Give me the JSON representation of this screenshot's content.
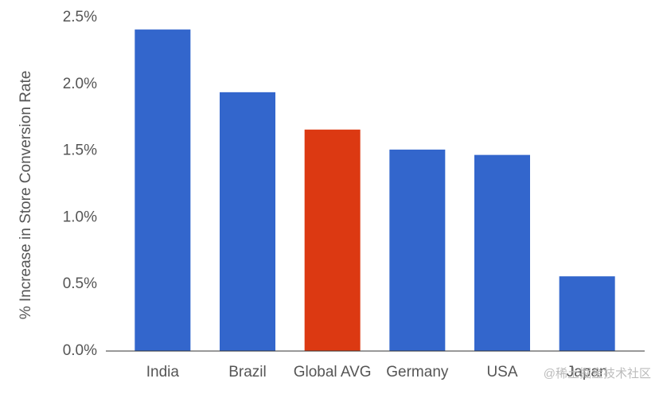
{
  "chart_data": {
    "type": "bar",
    "y_label": "% Increase in Store Conversion Rate",
    "categories": [
      "India",
      "Brazil",
      "Global AVG",
      "Germany",
      "USA",
      "Japan"
    ],
    "values": [
      2.41,
      1.94,
      1.66,
      1.51,
      1.47,
      0.56
    ],
    "colors": [
      "#3366cc",
      "#3366cc",
      "#dc3912",
      "#3366cc",
      "#3366cc",
      "#3366cc"
    ],
    "ylim": [
      0,
      2.5
    ],
    "yticks": [
      {
        "value": 0,
        "label": "0.0%"
      },
      {
        "value": 0.5,
        "label": "0.5%"
      },
      {
        "value": 1,
        "label": "1.0%"
      },
      {
        "value": 1.5,
        "label": "1.5%"
      },
      {
        "value": 2,
        "label": "2.0%"
      },
      {
        "value": 2.5,
        "label": "2.5%"
      }
    ],
    "grid": false
  },
  "watermark": "@稀土掘金技术社区"
}
